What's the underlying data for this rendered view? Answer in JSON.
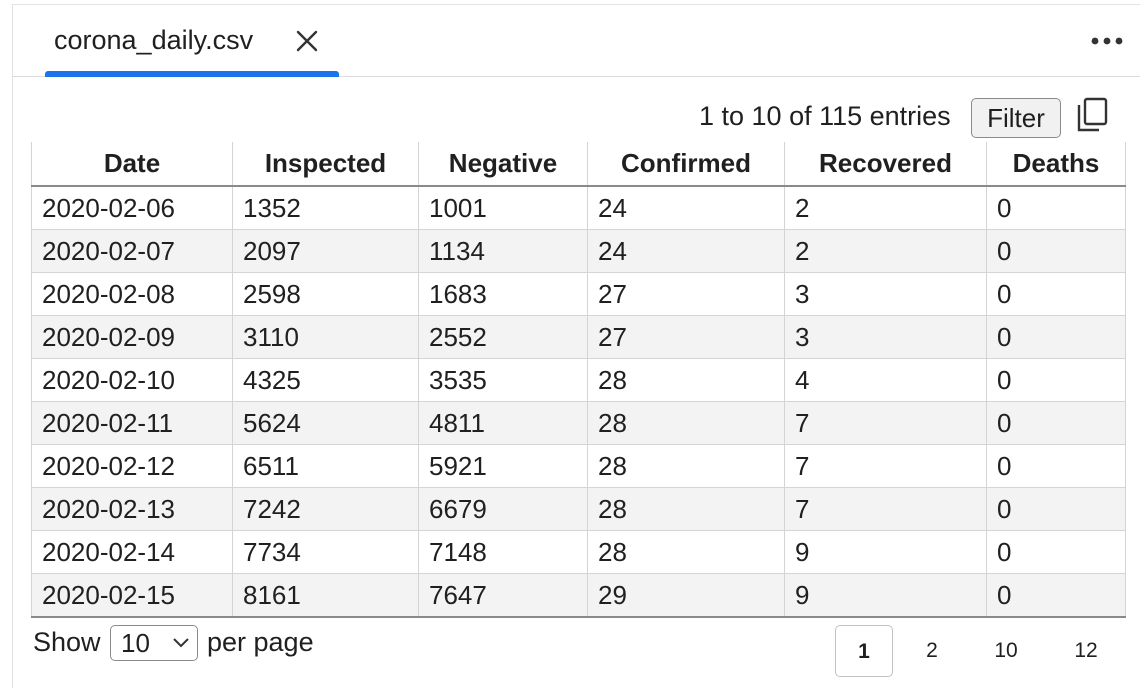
{
  "tab": {
    "title": "corona_daily.csv",
    "close_icon": "close-icon",
    "more_icon": "more-horizontal-icon"
  },
  "toolbar": {
    "entries_text": "1 to 10 of 115 entries",
    "filter_label": "Filter",
    "copy_icon": "copy-icon"
  },
  "table": {
    "columns": [
      "Date",
      "Inspected",
      "Negative",
      "Confirmed",
      "Recovered",
      "Deaths"
    ],
    "rows": [
      [
        "2020-02-06",
        "1352",
        "1001",
        "24",
        "2",
        "0"
      ],
      [
        "2020-02-07",
        "2097",
        "1134",
        "24",
        "2",
        "0"
      ],
      [
        "2020-02-08",
        "2598",
        "1683",
        "27",
        "3",
        "0"
      ],
      [
        "2020-02-09",
        "3110",
        "2552",
        "27",
        "3",
        "0"
      ],
      [
        "2020-02-10",
        "4325",
        "3535",
        "28",
        "4",
        "0"
      ],
      [
        "2020-02-11",
        "5624",
        "4811",
        "28",
        "7",
        "0"
      ],
      [
        "2020-02-12",
        "6511",
        "5921",
        "28",
        "7",
        "0"
      ],
      [
        "2020-02-13",
        "7242",
        "6679",
        "28",
        "7",
        "0"
      ],
      [
        "2020-02-14",
        "7734",
        "7148",
        "28",
        "9",
        "0"
      ],
      [
        "2020-02-15",
        "8161",
        "7647",
        "29",
        "9",
        "0"
      ]
    ]
  },
  "footer": {
    "show_label": "Show",
    "page_size": "10",
    "per_page_label": "per page",
    "pages": [
      "1",
      "2",
      "10",
      "12"
    ],
    "current_page": "1"
  },
  "colors": {
    "accent": "#1a73e8",
    "stripe": "#f3f3f3"
  }
}
